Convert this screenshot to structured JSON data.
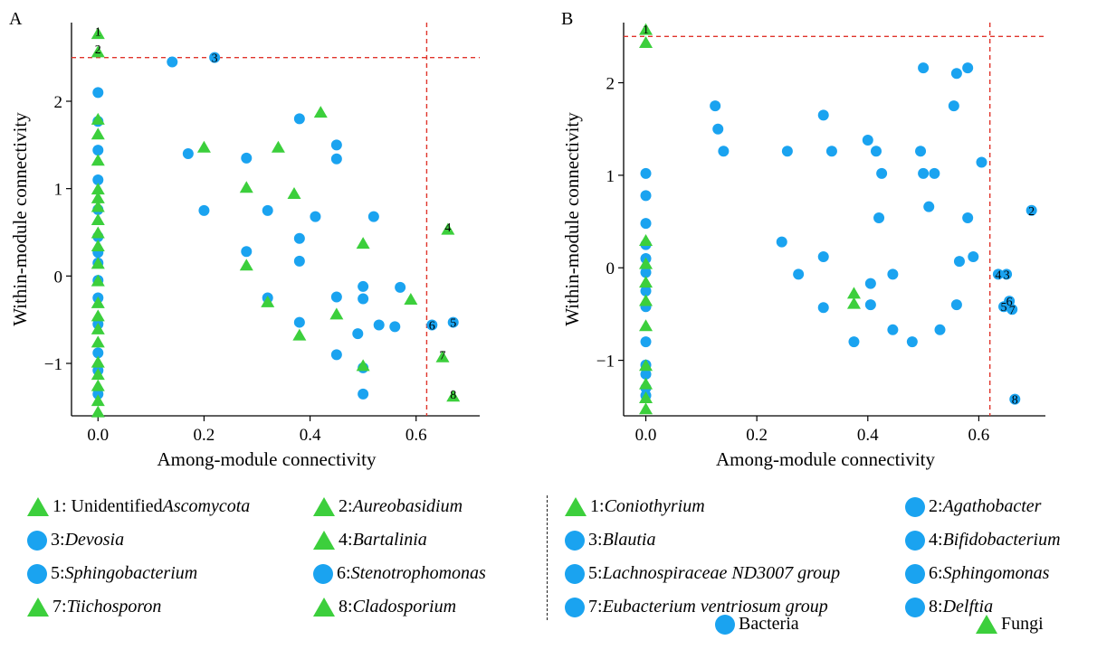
{
  "chart_data": [
    {
      "type": "scatter",
      "panel": "A",
      "xlabel": "Among-module connectivity",
      "ylabel": "Within-module connectivity",
      "xlim": [
        -0.05,
        0.72
      ],
      "ylim": [
        -1.6,
        2.9
      ],
      "xticks": [
        "0.0",
        "0.2",
        "0.4",
        "0.6"
      ],
      "yticks": [
        "−1",
        "0",
        "1",
        "2"
      ],
      "thresholds": {
        "x": 0.62,
        "y": 2.5
      },
      "series": [
        {
          "name": "Bacteria",
          "marker": "circle",
          "color": "#1aa3f0",
          "points": [
            [
              0,
              2.1
            ],
            [
              0,
              1.77
            ],
            [
              0,
              1.44
            ],
            [
              0,
              1.1
            ],
            [
              0,
              0.76
            ],
            [
              0,
              0.45
            ],
            [
              0,
              0.27
            ],
            [
              0,
              0.15
            ],
            [
              0,
              -0.05
            ],
            [
              0,
              -0.25
            ],
            [
              0,
              -0.55
            ],
            [
              0,
              -0.88
            ],
            [
              0,
              -1.08
            ],
            [
              0,
              -1.35
            ],
            [
              0.14,
              2.45
            ],
            [
              0.22,
              2.5
            ],
            [
              0.17,
              1.4
            ],
            [
              0.2,
              0.75
            ],
            [
              0.28,
              1.35
            ],
            [
              0.28,
              0.28
            ],
            [
              0.32,
              0.75
            ],
            [
              0.32,
              -0.25
            ],
            [
              0.38,
              1.8
            ],
            [
              0.38,
              0.43
            ],
            [
              0.38,
              0.17
            ],
            [
              0.38,
              -0.53
            ],
            [
              0.41,
              0.68
            ],
            [
              0.45,
              1.5
            ],
            [
              0.45,
              1.34
            ],
            [
              0.45,
              -0.24
            ],
            [
              0.45,
              -0.9
            ],
            [
              0.49,
              -0.66
            ],
            [
              0.5,
              -0.12
            ],
            [
              0.5,
              -0.26
            ],
            [
              0.5,
              -1.05
            ],
            [
              0.5,
              -1.35
            ],
            [
              0.52,
              0.68
            ],
            [
              0.53,
              -0.56
            ],
            [
              0.56,
              -0.58
            ],
            [
              0.57,
              -0.13
            ],
            [
              0.63,
              -0.56
            ],
            [
              0.67,
              -0.53
            ]
          ]
        },
        {
          "name": "Fungi",
          "marker": "triangle",
          "color": "#3ccf3c",
          "points": [
            [
              0,
              2.78
            ],
            [
              0,
              2.57
            ],
            [
              0,
              1.8
            ],
            [
              0,
              1.63
            ],
            [
              0,
              1.33
            ],
            [
              0,
              1.0
            ],
            [
              0,
              0.9
            ],
            [
              0,
              0.8
            ],
            [
              0,
              0.65
            ],
            [
              0,
              0.5
            ],
            [
              0,
              0.35
            ],
            [
              0,
              0.15
            ],
            [
              0,
              -0.05
            ],
            [
              0,
              -0.3
            ],
            [
              0,
              -0.45
            ],
            [
              0,
              -0.6
            ],
            [
              0,
              -0.75
            ],
            [
              0,
              -0.98
            ],
            [
              0,
              -1.12
            ],
            [
              0,
              -1.25
            ],
            [
              0,
              -1.42
            ],
            [
              0,
              -1.55
            ],
            [
              0.2,
              1.48
            ],
            [
              0.28,
              1.02
            ],
            [
              0.28,
              0.13
            ],
            [
              0.32,
              -0.29
            ],
            [
              0.34,
              1.48
            ],
            [
              0.37,
              0.95
            ],
            [
              0.38,
              -0.67
            ],
            [
              0.42,
              1.88
            ],
            [
              0.45,
              -0.43
            ],
            [
              0.5,
              0.38
            ],
            [
              0.5,
              -1.02
            ],
            [
              0.59,
              -0.26
            ],
            [
              0.65,
              -0.92
            ],
            [
              0.66,
              0.54
            ],
            [
              0.67,
              -1.37
            ]
          ]
        }
      ],
      "annotations": [
        {
          "label": "1",
          "x": 0,
          "y": 2.8
        },
        {
          "label": "2",
          "x": 0,
          "y": 2.6
        },
        {
          "label": "3",
          "x": 0.22,
          "y": 2.5
        },
        {
          "label": "4",
          "x": 0.66,
          "y": 0.56
        },
        {
          "label": "5",
          "x": 0.67,
          "y": -0.53
        },
        {
          "label": "6",
          "x": 0.63,
          "y": -0.56
        },
        {
          "label": "7",
          "x": 0.65,
          "y": -0.9
        },
        {
          "label": "8",
          "x": 0.67,
          "y": -1.35
        }
      ]
    },
    {
      "type": "scatter",
      "panel": "B",
      "xlabel": "Among-module connectivity",
      "ylabel": "Within-module connectivity",
      "xlim": [
        -0.04,
        0.72
      ],
      "ylim": [
        -1.6,
        2.65
      ],
      "xticks": [
        "0.0",
        "0.2",
        "0.4",
        "0.6"
      ],
      "yticks": [
        "−1",
        "0",
        "1",
        "2"
      ],
      "thresholds": {
        "x": 0.62,
        "y": 2.5
      },
      "series": [
        {
          "name": "Bacteria",
          "marker": "circle",
          "color": "#1aa3f0",
          "points": [
            [
              0,
              1.02
            ],
            [
              0,
              0.78
            ],
            [
              0,
              0.48
            ],
            [
              0,
              0.25
            ],
            [
              0,
              0.1
            ],
            [
              0,
              -0.05
            ],
            [
              0,
              -0.25
            ],
            [
              0,
              -0.42
            ],
            [
              0,
              -0.8
            ],
            [
              0,
              -1.05
            ],
            [
              0,
              -1.15
            ],
            [
              0,
              -1.3
            ],
            [
              0,
              -1.38
            ],
            [
              0.125,
              1.75
            ],
            [
              0.13,
              1.5
            ],
            [
              0.14,
              1.26
            ],
            [
              0.245,
              0.28
            ],
            [
              0.255,
              1.26
            ],
            [
              0.275,
              -0.07
            ],
            [
              0.32,
              1.65
            ],
            [
              0.32,
              0.12
            ],
            [
              0.32,
              -0.43
            ],
            [
              0.335,
              1.26
            ],
            [
              0.375,
              -0.8
            ],
            [
              0.4,
              1.38
            ],
            [
              0.405,
              -0.17
            ],
            [
              0.405,
              -0.4
            ],
            [
              0.415,
              1.26
            ],
            [
              0.425,
              1.02
            ],
            [
              0.42,
              0.54
            ],
            [
              0.445,
              -0.07
            ],
            [
              0.445,
              -0.67
            ],
            [
              0.48,
              -0.8
            ],
            [
              0.495,
              1.26
            ],
            [
              0.5,
              2.16
            ],
            [
              0.5,
              1.02
            ],
            [
              0.51,
              0.66
            ],
            [
              0.52,
              1.02
            ],
            [
              0.53,
              -0.67
            ],
            [
              0.555,
              1.75
            ],
            [
              0.56,
              -0.4
            ],
            [
              0.56,
              2.1
            ],
            [
              0.565,
              0.07
            ],
            [
              0.58,
              2.16
            ],
            [
              0.58,
              0.54
            ],
            [
              0.59,
              0.12
            ],
            [
              0.605,
              1.14
            ],
            [
              0.635,
              -0.07
            ],
            [
              0.645,
              -0.42
            ],
            [
              0.65,
              -0.07
            ],
            [
              0.655,
              -0.36
            ],
            [
              0.66,
              -0.45
            ],
            [
              0.665,
              -1.42
            ],
            [
              0.695,
              0.62
            ]
          ]
        },
        {
          "name": "Fungi",
          "marker": "triangle",
          "color": "#3ccf3c",
          "points": [
            [
              0,
              2.58
            ],
            [
              0,
              2.44
            ],
            [
              0,
              0.3
            ],
            [
              0,
              0.05
            ],
            [
              0,
              -0.15
            ],
            [
              0,
              -0.35
            ],
            [
              0,
              -0.62
            ],
            [
              0,
              -1.05
            ],
            [
              0,
              -1.25
            ],
            [
              0,
              -1.4
            ],
            [
              0,
              -1.52
            ],
            [
              0.375,
              -0.27
            ],
            [
              0.375,
              -0.38
            ]
          ]
        }
      ],
      "annotations": [
        {
          "label": "1",
          "x": 0,
          "y": 2.58
        },
        {
          "label": "2",
          "x": 0.695,
          "y": 0.62
        },
        {
          "label": "3",
          "x": 0.65,
          "y": -0.07
        },
        {
          "label": "4",
          "x": 0.635,
          "y": -0.07
        },
        {
          "label": "5",
          "x": 0.645,
          "y": -0.42
        },
        {
          "label": "6",
          "x": 0.655,
          "y": -0.36
        },
        {
          "label": "7",
          "x": 0.66,
          "y": -0.45
        },
        {
          "label": "8",
          "x": 0.665,
          "y": -1.42
        }
      ]
    }
  ],
  "panels": {
    "a_letter": "A",
    "b_letter": "B"
  },
  "legend_a": [
    {
      "marker": "triangle",
      "num": "1: ",
      "pre": "Unidentified ",
      "italic": "Ascomycota"
    },
    {
      "marker": "triangle",
      "num": "2: ",
      "pre": "",
      "italic": "Aureobasidium"
    },
    {
      "marker": "circle",
      "num": "3: ",
      "pre": "",
      "italic": "Devosia"
    },
    {
      "marker": "triangle",
      "num": "4: ",
      "pre": "",
      "italic": "Bartalinia"
    },
    {
      "marker": "circle",
      "num": "5: ",
      "pre": "",
      "italic": "Sphingobacterium"
    },
    {
      "marker": "circle",
      "num": "6: ",
      "pre": "",
      "italic": "Stenotrophomonas"
    },
    {
      "marker": "triangle",
      "num": "7: ",
      "pre": "",
      "italic": "Tiichosporon"
    },
    {
      "marker": "triangle",
      "num": "8: ",
      "pre": "",
      "italic": "Cladosporium"
    }
  ],
  "legend_b": [
    {
      "marker": "triangle",
      "num": "1: ",
      "pre": "",
      "italic": "Coniothyrium"
    },
    {
      "marker": "circle",
      "num": "2: ",
      "pre": "",
      "italic": "Agathobacter"
    },
    {
      "marker": "circle",
      "num": "3: ",
      "pre": "",
      "italic": "Blautia"
    },
    {
      "marker": "circle",
      "num": "4: ",
      "pre": "",
      "italic": "Bifidobacterium"
    },
    {
      "marker": "circle",
      "num": "5: ",
      "pre": "",
      "italic": "Lachnospiraceae ND3007 group"
    },
    {
      "marker": "circle",
      "num": "6: ",
      "pre": "",
      "italic": "Sphingomonas"
    },
    {
      "marker": "circle",
      "num": "7: ",
      "pre": "",
      "italic": "Eubacterium ventriosum group"
    },
    {
      "marker": "circle",
      "num": "8: ",
      "pre": "",
      "italic": "Delftia"
    }
  ],
  "legend_key": {
    "bacteria": "Bacteria",
    "fungi": "Fungi"
  },
  "colors": {
    "bacteria": "#1aa3f0",
    "fungi": "#3ccf3c",
    "threshold": "#e0342b"
  }
}
